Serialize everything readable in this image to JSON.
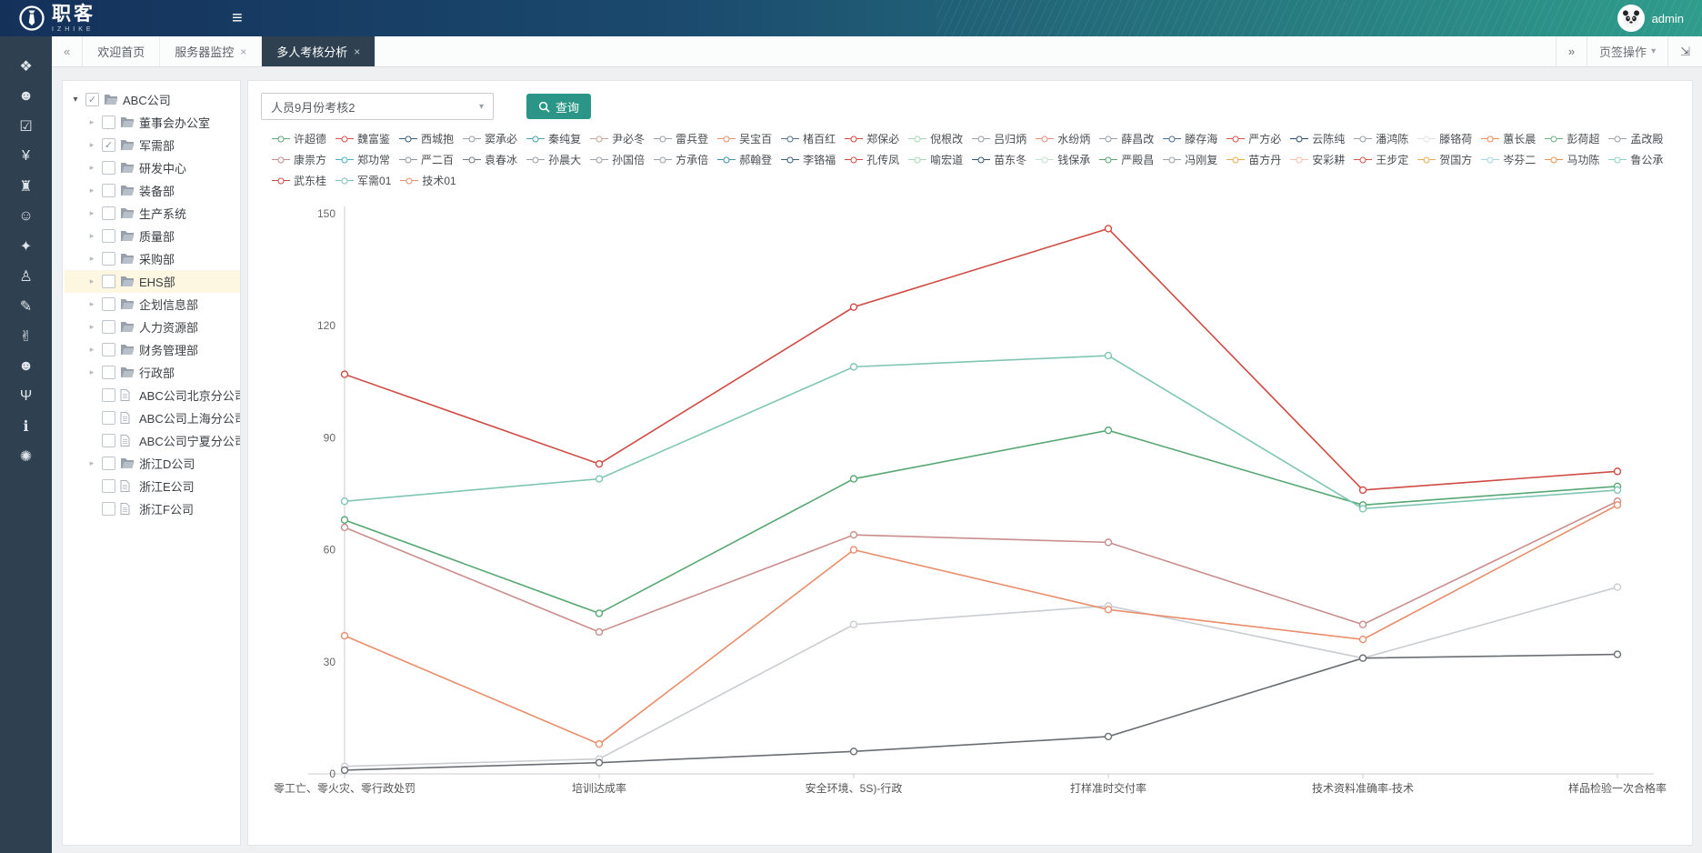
{
  "header": {
    "logo_text": "职客",
    "logo_sub": "IZHIKE",
    "menu_glyph": "≡",
    "user": "admin"
  },
  "tabbar": {
    "back_glyph": "«",
    "forward_glyph": "»",
    "menu_label": "页签操作",
    "menu_caret": "▾",
    "fullscreen_glyph": "⇲",
    "tabs": [
      {
        "label": "欢迎首页",
        "closable": false,
        "active": false
      },
      {
        "label": "服务器监控",
        "closable": true,
        "active": false
      },
      {
        "label": "多人考核分析",
        "closable": true,
        "active": true
      }
    ]
  },
  "sidebar": {
    "icons": [
      {
        "name": "org-structure-icon",
        "glyph": "❖"
      },
      {
        "name": "user-group-icon",
        "glyph": "☻"
      },
      {
        "name": "task-check-icon",
        "glyph": "☑"
      },
      {
        "name": "finance-yen-icon",
        "glyph": "¥"
      },
      {
        "name": "institution-icon",
        "glyph": "♜"
      },
      {
        "name": "members-icon",
        "glyph": "☺"
      },
      {
        "name": "briefcase-icon",
        "glyph": "✦"
      },
      {
        "name": "podium-person-icon",
        "glyph": "♙"
      },
      {
        "name": "education-icon",
        "glyph": "✎"
      },
      {
        "name": "activity-person-icon",
        "glyph": "✌"
      },
      {
        "name": "user-icon",
        "glyph": "☻"
      },
      {
        "name": "trophy-icon",
        "glyph": "Ψ"
      },
      {
        "name": "info-icon",
        "glyph": "ℹ"
      },
      {
        "name": "settings-gear-icon",
        "glyph": "✺"
      }
    ]
  },
  "tree": {
    "items": [
      {
        "label": "ABC公司",
        "level": 0,
        "type": "folder",
        "arrow": "expanded",
        "checked": true,
        "highlighted": false
      },
      {
        "label": "董事会办公室",
        "level": 1,
        "type": "folder",
        "arrow": "collapsed",
        "checked": false,
        "highlighted": false
      },
      {
        "label": "军需部",
        "level": 1,
        "type": "folder",
        "arrow": "collapsed",
        "checked": true,
        "highlighted": false
      },
      {
        "label": "研发中心",
        "level": 1,
        "type": "folder",
        "arrow": "collapsed",
        "checked": false,
        "highlighted": false
      },
      {
        "label": "装备部",
        "level": 1,
        "type": "folder",
        "arrow": "collapsed",
        "checked": false,
        "highlighted": false
      },
      {
        "label": "生产系统",
        "level": 1,
        "type": "folder",
        "arrow": "collapsed",
        "checked": false,
        "highlighted": false
      },
      {
        "label": "质量部",
        "level": 1,
        "type": "folder",
        "arrow": "collapsed",
        "checked": false,
        "highlighted": false
      },
      {
        "label": "采购部",
        "level": 1,
        "type": "folder",
        "arrow": "collapsed",
        "checked": false,
        "highlighted": false
      },
      {
        "label": "EHS部",
        "level": 1,
        "type": "folder",
        "arrow": "collapsed",
        "checked": false,
        "highlighted": true
      },
      {
        "label": "企划信息部",
        "level": 1,
        "type": "folder",
        "arrow": "collapsed",
        "checked": false,
        "highlighted": false
      },
      {
        "label": "人力资源部",
        "level": 1,
        "type": "folder",
        "arrow": "collapsed",
        "checked": false,
        "highlighted": false
      },
      {
        "label": "财务管理部",
        "level": 1,
        "type": "folder",
        "arrow": "collapsed",
        "checked": false,
        "highlighted": false
      },
      {
        "label": "行政部",
        "level": 1,
        "type": "folder",
        "arrow": "collapsed",
        "checked": false,
        "highlighted": false
      },
      {
        "label": "ABC公司北京分公司",
        "level": 1,
        "type": "file",
        "arrow": "none",
        "checked": false,
        "highlighted": false
      },
      {
        "label": "ABC公司上海分公司",
        "level": 1,
        "type": "file",
        "arrow": "none",
        "checked": false,
        "highlighted": false
      },
      {
        "label": "ABC公司宁夏分公司",
        "level": 1,
        "type": "file",
        "arrow": "none",
        "checked": false,
        "highlighted": false
      },
      {
        "label": "浙江D公司",
        "level": 1,
        "type": "folder",
        "arrow": "collapsed",
        "checked": false,
        "highlighted": false
      },
      {
        "label": "浙江E公司",
        "level": 1,
        "type": "file",
        "arrow": "none",
        "checked": false,
        "highlighted": false
      },
      {
        "label": "浙江F公司",
        "level": 1,
        "type": "file",
        "arrow": "none",
        "checked": false,
        "highlighted": false
      }
    ]
  },
  "toolbar": {
    "select_value": "人员9月份考核2",
    "select_caret": "▾",
    "search_label": "查询"
  },
  "colors": {
    "accent_teal": "#2b9687",
    "header_navy": "#14315a",
    "header_teal": "#2f9d8c",
    "rail_dark": "#2f4050",
    "tree_highlight": "#fdf6e0"
  },
  "chart_data": {
    "type": "line",
    "title": "",
    "xlabel": "",
    "ylabel": "",
    "ylim": [
      0,
      150
    ],
    "yticks": [
      0,
      30,
      60,
      90,
      120,
      150
    ],
    "grid": false,
    "legend_position": "top",
    "categories": [
      "零工亡、零火灾、零行政处罚",
      "培训达成率",
      "安全环境、5S)-行政",
      "打样准时交付率",
      "技术资料准确率-技术",
      "样品检验一次合格率"
    ],
    "series": [
      {
        "name": "窦承必",
        "color": "#c9ccd0",
        "values": [
          2,
          4,
          40,
          45,
          31,
          50
        ]
      },
      {
        "name": "袁春冰",
        "color": "#6a6e72",
        "values": [
          1,
          3,
          6,
          10,
          31,
          32
        ]
      },
      {
        "name": "康祟方",
        "color": "#c98d8d",
        "values": [
          66,
          38,
          64,
          62,
          40,
          73
        ]
      },
      {
        "name": "技术01",
        "color": "#e98d6b",
        "values": [
          37,
          8,
          60,
          44,
          36,
          72
        ]
      },
      {
        "name": "许超德",
        "color": "#57a773",
        "values": [
          68,
          43,
          79,
          92,
          72,
          77
        ]
      },
      {
        "name": "军需01",
        "color": "#7fc6b2",
        "values": [
          73,
          79,
          109,
          112,
          71,
          76
        ]
      },
      {
        "name": "武东桂",
        "color": "#cf4b43",
        "values": [
          107,
          83,
          125,
          146,
          76,
          81
        ]
      }
    ],
    "legend_rows": [
      [
        {
          "label": "许超德",
          "color": "#5fa777"
        },
        {
          "label": "魏富鉴",
          "color": "#d9534f"
        },
        {
          "label": "西城抱",
          "color": "#3a5e7e"
        },
        {
          "label": "窦承必",
          "color": "#9aa0a6"
        },
        {
          "label": "秦纯复",
          "color": "#46a3b3"
        },
        {
          "label": "尹必冬",
          "color": "#c9a29a"
        },
        {
          "label": "雷兵登",
          "color": "#9aa0a6"
        },
        {
          "label": "吴宝百",
          "color": "#ef9067"
        },
        {
          "label": "楮百红",
          "color": "#566f87"
        },
        {
          "label": "郑保必",
          "color": "#cf4b43"
        },
        {
          "label": "倪根改",
          "color": "#a8d8b9"
        },
        {
          "label": "吕归炳",
          "color": "#9aa0a6"
        },
        {
          "label": "水纷炳",
          "color": "#e98d7c"
        },
        {
          "label": "薛昌改",
          "color": "#9aa0a6"
        },
        {
          "label": "滕存海",
          "color": "#4a6e8c"
        },
        {
          "label": "严方必",
          "color": "#d9534f"
        },
        {
          "label": "云陈纯",
          "color": "#2e4d6e"
        },
        {
          "label": "潘鸿陈",
          "color": "#9aa0a6"
        },
        {
          "label": "滕铬荷",
          "color": "#dfe3e6"
        },
        {
          "label": "蕙长晨",
          "color": "#ef8a54"
        },
        {
          "label": "彭荷超",
          "color": "#6fae83"
        },
        {
          "label": "孟改殿",
          "color": "#9aa0a6"
        }
      ],
      [
        {
          "label": "康祟方",
          "color": "#c98d8d"
        },
        {
          "label": "郑功常",
          "color": "#48b2c2"
        },
        {
          "label": "严二百",
          "color": "#8f969c"
        },
        {
          "label": "袁春冰",
          "color": "#73797f"
        },
        {
          "label": "孙晨大",
          "color": "#9aa0a6"
        },
        {
          "label": "孙国倍",
          "color": "#9aa0a6"
        },
        {
          "label": "方承倍",
          "color": "#9aa0a6"
        },
        {
          "label": "郝翰登",
          "color": "#3f93ae"
        },
        {
          "label": "李铬福",
          "color": "#3c5f80"
        },
        {
          "label": "孔传凤",
          "color": "#cf4b43"
        },
        {
          "label": "喻宏道",
          "color": "#a8d8b9"
        },
        {
          "label": "苗东冬",
          "color": "#36576f"
        },
        {
          "label": "钱保承",
          "color": "#bfe3cd"
        },
        {
          "label": "严殿昌",
          "color": "#58a273"
        },
        {
          "label": "冯刚复",
          "color": "#9aa0a6"
        },
        {
          "label": "苗方丹",
          "color": "#e5ad4e"
        },
        {
          "label": "安彩耕",
          "color": "#f2c0ac"
        },
        {
          "label": "王步定",
          "color": "#d9534f"
        },
        {
          "label": "贺国方",
          "color": "#e5ad4e"
        },
        {
          "label": "岑芬二",
          "color": "#a6d6de"
        },
        {
          "label": "马功陈",
          "color": "#e5954e"
        },
        {
          "label": "鲁公承",
          "color": "#8fd0c8"
        }
      ],
      [
        {
          "label": "武东桂",
          "color": "#cf4b43"
        },
        {
          "label": "军需01",
          "color": "#7fc6b2"
        },
        {
          "label": "技术01",
          "color": "#e98d6b"
        }
      ]
    ]
  }
}
